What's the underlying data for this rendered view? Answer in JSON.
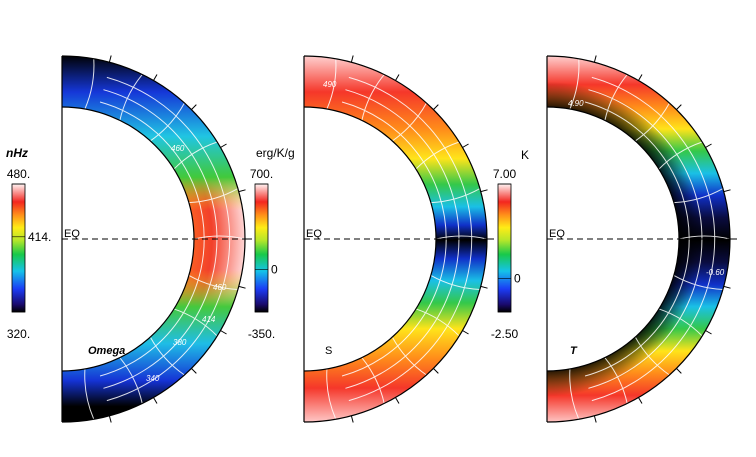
{
  "chart_data": [
    {
      "type": "heatmap",
      "title": "Omega",
      "title_style": "bold-italic",
      "colorbar": {
        "unit": "nHz",
        "unit_style": "bold-italic",
        "min": 320,
        "max": 480,
        "tick_labels": [
          "480.",
          "414.",
          "320."
        ],
        "tick_values": [
          480,
          414,
          320
        ]
      },
      "equator_label": "EQ",
      "contour_labels": [
        {
          "text": "340"
        },
        {
          "text": "380"
        },
        {
          "text": "414"
        },
        {
          "text": "460"
        },
        {
          "text": "460"
        }
      ],
      "colormap": "rainbow"
    },
    {
      "type": "heatmap",
      "title": "S",
      "title_style": "normal",
      "colorbar": {
        "unit": "erg/K/g",
        "unit_style": "normal",
        "min": -350,
        "max": 700,
        "tick_labels": [
          "700.",
          "0",
          "-350."
        ],
        "tick_values": [
          700,
          0,
          -350
        ]
      },
      "equator_label": "EQ",
      "contour_labels": [
        {
          "text": "490"
        }
      ],
      "colormap": "rainbow"
    },
    {
      "type": "heatmap",
      "title": "T",
      "title_style": "bold-italic",
      "colorbar": {
        "unit": "K",
        "unit_style": "normal",
        "min": -2.5,
        "max": 7.0,
        "tick_labels": [
          "7.00",
          "0",
          "-2.50"
        ],
        "tick_values": [
          7.0,
          0,
          -2.5
        ]
      },
      "equator_label": "EQ",
      "contour_labels": [
        {
          "text": "4.90"
        },
        {
          "text": "-0.60"
        }
      ],
      "colormap": "rainbow"
    }
  ]
}
